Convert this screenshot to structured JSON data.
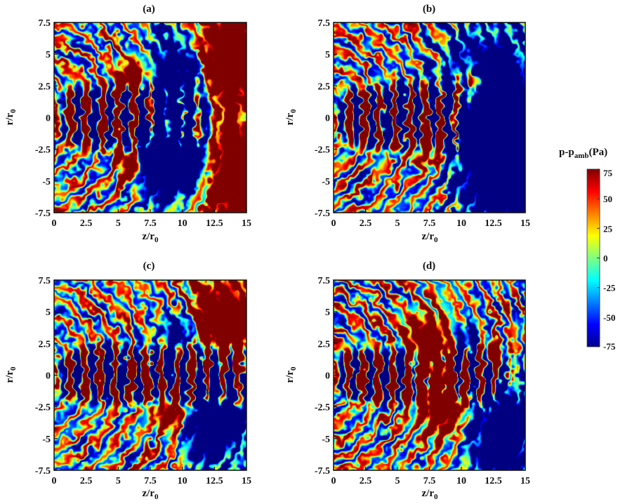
{
  "chart_data": {
    "type": "heatmap",
    "colormap": "jet",
    "panels": [
      {
        "title": "(a)",
        "xlabel": "z/r",
        "xlabel_sub": "0",
        "ylabel": "r/r",
        "ylabel_sub": "0",
        "xlim": [
          0,
          15
        ],
        "ylim": [
          -7.5,
          7.5
        ],
        "xticks": [
          "0",
          "2.5",
          "5",
          "7.5",
          "10",
          "12.5",
          "15"
        ],
        "yticks": [
          "-7.5",
          "-5",
          "-2.5",
          "0",
          "2.5",
          "5",
          "7.5"
        ],
        "field": {
          "source": [
            -2,
            0
          ],
          "wavelength": 1.35,
          "wave_amplitude": 70,
          "core": {
            "z_start": 0.5,
            "z_end": 11.5,
            "half_width": 2.6,
            "spot_spacing": 1.25
          },
          "blobs": [
            {
              "z": 13.8,
              "r": 4.5,
              "sz": 1.9,
              "sr": 2.6,
              "amp": 260
            },
            {
              "z": 13.8,
              "r": -4.5,
              "sz": 1.9,
              "sr": 2.6,
              "amp": 260
            },
            {
              "z": 9.8,
              "r": 1.5,
              "sz": 1.6,
              "sr": 3.2,
              "amp": -240
            },
            {
              "z": 8.0,
              "r": -3.0,
              "sz": 1.3,
              "sr": 2.2,
              "amp": -220
            },
            {
              "z": 11.0,
              "r": -4.0,
              "sz": 1.3,
              "sr": 1.6,
              "amp": -180
            },
            {
              "z": 6.2,
              "r": 3.2,
              "sz": 0.8,
              "sr": 1.1,
              "amp": 170
            },
            {
              "z": 6.0,
              "r": -3.5,
              "sz": 0.8,
              "sr": 1.1,
              "amp": 170
            }
          ]
        }
      },
      {
        "title": "(b)",
        "xlabel": "z/r",
        "xlabel_sub": "0",
        "ylabel": "r/r",
        "ylabel_sub": "0",
        "xlim": [
          0,
          15
        ],
        "ylim": [
          -7.5,
          7.5
        ],
        "xticks": [
          "0",
          "2.5",
          "5",
          "7.5",
          "10",
          "12.5",
          "15"
        ],
        "yticks": [
          "-7.5",
          "-5",
          "-2.5",
          "0",
          "2.5",
          "5",
          "7.5"
        ],
        "field": {
          "source": [
            -2,
            0
          ],
          "wavelength": 1.25,
          "wave_amplitude": 72,
          "core": {
            "z_start": 0.5,
            "z_end": 10.5,
            "half_width": 2.5,
            "spot_spacing": 1.2
          },
          "blobs": [
            {
              "z": 12.2,
              "r": 0.5,
              "sz": 2.6,
              "sr": 4.0,
              "amp": -260
            },
            {
              "z": 14.0,
              "r": -4.5,
              "sz": 1.8,
              "sr": 2.6,
              "amp": -220
            },
            {
              "z": 10.6,
              "r": 2.4,
              "sz": 0.8,
              "sr": 1.2,
              "amp": 200
            },
            {
              "z": 7.6,
              "r": -1.8,
              "sz": 1.0,
              "sr": 1.6,
              "amp": 160
            }
          ]
        }
      },
      {
        "title": "(c)",
        "xlabel": "z/r",
        "xlabel_sub": "0",
        "ylabel": "r/r",
        "ylabel_sub": "0",
        "xlim": [
          0,
          15
        ],
        "ylim": [
          -7.5,
          7.5
        ],
        "xticks": [
          "0",
          "2.5",
          "5",
          "7.5",
          "10",
          "12.5",
          "15"
        ],
        "yticks": [
          "-7.5",
          "-5",
          "-2.5",
          "0",
          "2.5",
          "5",
          "7.5"
        ],
        "field": {
          "source": [
            -2,
            0
          ],
          "wavelength": 1.3,
          "wave_amplitude": 70,
          "core": {
            "z_start": 0.5,
            "z_end": 15,
            "half_width": 2.3,
            "spot_spacing": 1.2
          },
          "blobs": [
            {
              "z": 13.2,
              "r": 4.3,
              "sz": 1.9,
              "sr": 2.0,
              "amp": 260
            },
            {
              "z": 12.6,
              "r": -3.8,
              "sz": 1.6,
              "sr": 2.2,
              "amp": -220
            },
            {
              "z": 10.0,
              "r": 3.5,
              "sz": 1.1,
              "sr": 1.3,
              "amp": -180
            },
            {
              "z": 9.2,
              "r": -2.8,
              "sz": 1.0,
              "sr": 1.3,
              "amp": 160
            }
          ]
        }
      },
      {
        "title": "(d)",
        "xlabel": "z/r",
        "xlabel_sub": "0",
        "ylabel": "r/r",
        "ylabel_sub": "0",
        "xlim": [
          0,
          15
        ],
        "ylim": [
          -7.5,
          7.5
        ],
        "xticks": [
          "0",
          "2.5",
          "5",
          "7.5",
          "10",
          "12.5",
          "15"
        ],
        "yticks": [
          "-7.5",
          "-5",
          "-2.5",
          "0",
          "2.5",
          "5",
          "7.5"
        ],
        "field": {
          "source": [
            -2,
            0
          ],
          "wavelength": 1.2,
          "wave_amplitude": 72,
          "core": {
            "z_start": 0.5,
            "z_end": 13.5,
            "half_width": 2.2,
            "spot_spacing": 1.15
          },
          "blobs": [
            {
              "z": 7.6,
              "r": 1.6,
              "sz": 1.3,
              "sr": 2.0,
              "amp": 240
            },
            {
              "z": 8.6,
              "r": -2.0,
              "sz": 1.3,
              "sr": 1.8,
              "amp": 220
            },
            {
              "z": 13.2,
              "r": -4.5,
              "sz": 1.8,
              "sr": 2.4,
              "amp": -230
            },
            {
              "z": 10.5,
              "r": 2.5,
              "sz": 0.9,
              "sr": 1.0,
              "amp": -160
            },
            {
              "z": 12.2,
              "r": 1.8,
              "sz": 0.7,
              "sr": 0.9,
              "amp": 160
            }
          ]
        }
      }
    ],
    "colorbar": {
      "label": "p-p",
      "label_sub": "amb",
      "label_unit": "(Pa)",
      "ticks": [
        "75",
        "50",
        "25",
        "0",
        "-25",
        "-50",
        "-75"
      ],
      "range": [
        -75,
        75
      ]
    }
  }
}
